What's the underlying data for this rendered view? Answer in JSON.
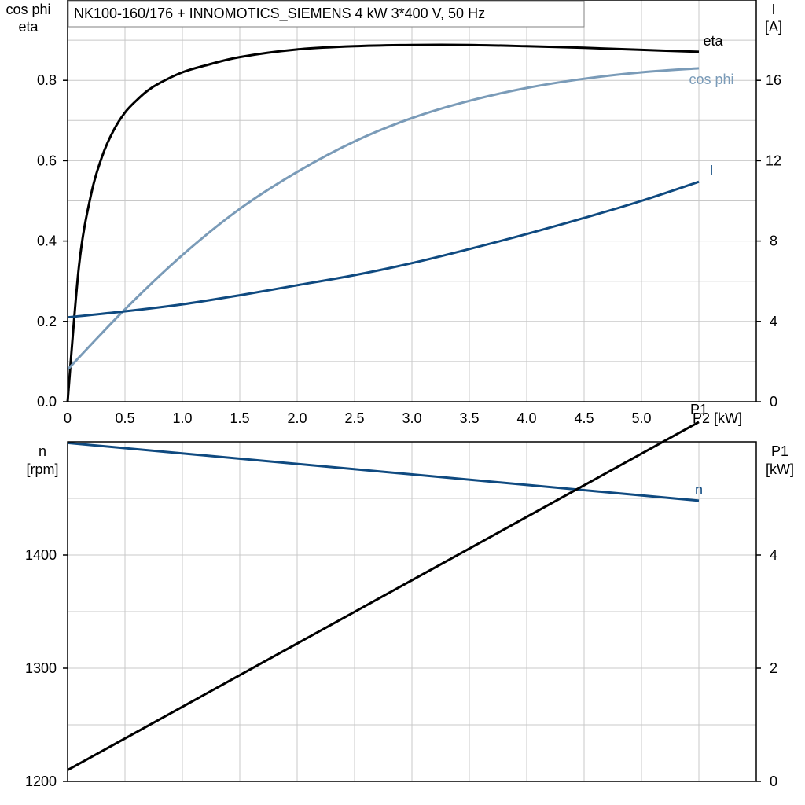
{
  "title": "NK100-160/176 + INNOMOTICS_SIEMENS   4 kW   3*400 V, 50 Hz",
  "colors": {
    "eta": "#000000",
    "cos_phi": "#7a9bb8",
    "I": "#0f4a80",
    "n": "#0f4a80",
    "P1": "#000000",
    "grid": "#c8c8c8"
  },
  "chart_data": [
    {
      "type": "line",
      "title": "",
      "xlabel": "P2 [kW]",
      "ylabel_left": [
        "cos phi",
        "eta"
      ],
      "ylabel_right": [
        "I",
        "[A]"
      ],
      "xlim": [
        0,
        6.0
      ],
      "ylim_left": [
        0,
        1.0
      ],
      "ylim_right": [
        0,
        20
      ],
      "xticks": [
        "0",
        "0.5",
        "1.0",
        "1.5",
        "2.0",
        "2.5",
        "3.0",
        "3.5",
        "4.0",
        "4.5",
        "5.0"
      ],
      "yticks_left": [
        "0.0",
        "0.2",
        "0.4",
        "0.6",
        "0.8"
      ],
      "yticks_right": [
        "0",
        "4",
        "8",
        "12",
        "16"
      ],
      "grid": true,
      "series": [
        {
          "name": "eta",
          "axis": "left",
          "x": [
            0,
            0.1,
            0.2,
            0.3,
            0.4,
            0.5,
            0.6,
            0.7,
            0.8,
            1.0,
            1.2,
            1.5,
            2.0,
            2.5,
            3.0,
            3.5,
            4.0,
            4.5,
            5.0,
            5.5
          ],
          "y": [
            0.0,
            0.34,
            0.51,
            0.61,
            0.675,
            0.72,
            0.75,
            0.775,
            0.793,
            0.82,
            0.837,
            0.858,
            0.877,
            0.885,
            0.888,
            0.888,
            0.885,
            0.881,
            0.876,
            0.871
          ]
        },
        {
          "name": "cos phi",
          "axis": "left",
          "x": [
            0,
            0.5,
            1.0,
            1.5,
            2.0,
            2.5,
            3.0,
            3.5,
            4.0,
            4.5,
            5.0,
            5.5
          ],
          "y": [
            0.08,
            0.23,
            0.365,
            0.48,
            0.572,
            0.648,
            0.706,
            0.749,
            0.781,
            0.804,
            0.82,
            0.83
          ]
        },
        {
          "name": "I",
          "axis": "right",
          "x": [
            0,
            0.5,
            1.0,
            1.5,
            2.0,
            2.5,
            3.0,
            3.5,
            4.0,
            4.5,
            5.0,
            5.5
          ],
          "y": [
            4.2,
            4.5,
            4.85,
            5.3,
            5.8,
            6.3,
            6.9,
            7.6,
            8.35,
            9.15,
            10.0,
            10.95
          ]
        }
      ]
    },
    {
      "type": "line",
      "title": "",
      "xlabel": "",
      "ylabel_left": [
        "n",
        "[rpm]"
      ],
      "ylabel_right": [
        "P1",
        "[kW]"
      ],
      "xlim": [
        0,
        6.0
      ],
      "ylim_left": [
        1200,
        1500
      ],
      "ylim_right": [
        0,
        6
      ],
      "yticks_left": [
        "1200",
        "1300",
        "1400"
      ],
      "yticks_right": [
        "0",
        "2",
        "4"
      ],
      "grid": true,
      "series": [
        {
          "name": "n",
          "axis": "left",
          "x": [
            0,
            5.5
          ],
          "y": [
            1499,
            1448
          ]
        },
        {
          "name": "P1",
          "axis": "right",
          "x": [
            0,
            5.5
          ],
          "y": [
            0.2,
            6.35
          ]
        }
      ]
    }
  ]
}
